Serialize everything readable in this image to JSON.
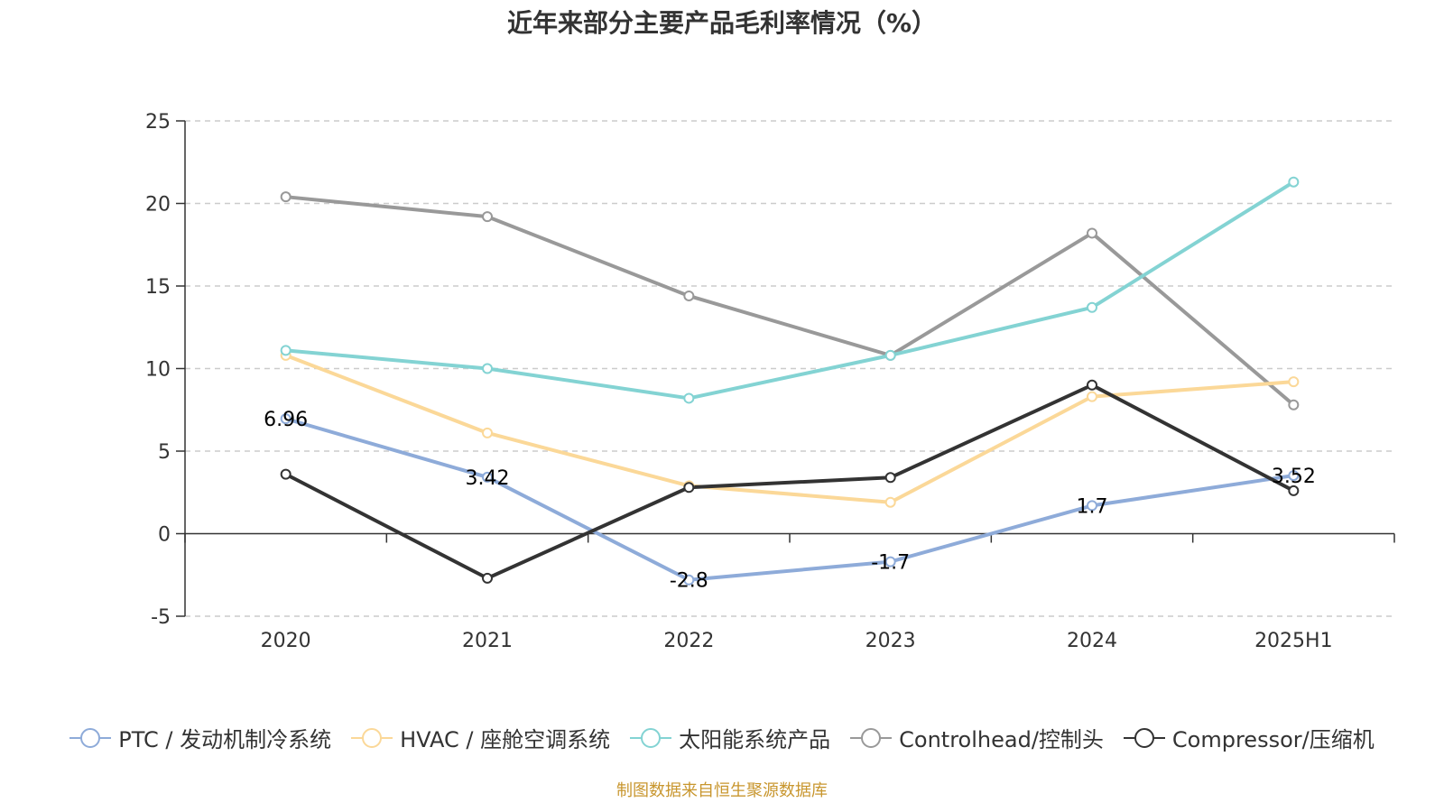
{
  "title": "近年来部分主要产品毛利率情况（%）",
  "source": "制图数据来自恒生聚源数据库",
  "chart_data": {
    "type": "line",
    "title": "近年来部分主要产品毛利率情况（%）",
    "categories": [
      "2020",
      "2021",
      "2022",
      "2023",
      "2024",
      "2025H1"
    ],
    "ylim": [
      -5,
      25
    ],
    "yticks": [
      -5,
      0,
      5,
      10,
      15,
      20,
      25
    ],
    "grid": true,
    "legend_position": "bottom",
    "series": [
      {
        "name": "PTC / 发动机制冷系统",
        "color": "#8eabd9",
        "values": [
          6.96,
          3.42,
          -2.8,
          -1.7,
          1.7,
          3.52
        ],
        "labels": [
          "6.96",
          "3.42",
          "-2.8",
          "-1.7",
          "1.7",
          "3.52"
        ]
      },
      {
        "name": "HVAC / 座舱空调系统",
        "color": "#fbd898",
        "values": [
          10.8,
          6.1,
          2.9,
          1.9,
          8.3,
          9.2
        ]
      },
      {
        "name": "太阳能系统产品",
        "color": "#83d3d3",
        "values": [
          11.1,
          10.0,
          8.2,
          10.8,
          13.7,
          21.3
        ]
      },
      {
        "name": "Controlhead/控制头",
        "color": "#999999",
        "values": [
          20.4,
          19.2,
          14.4,
          10.8,
          18.2,
          7.8
        ]
      },
      {
        "name": "Compressor/压缩机",
        "color": "#333333",
        "values": [
          3.6,
          -2.7,
          2.8,
          3.4,
          9.0,
          2.6
        ]
      }
    ]
  }
}
